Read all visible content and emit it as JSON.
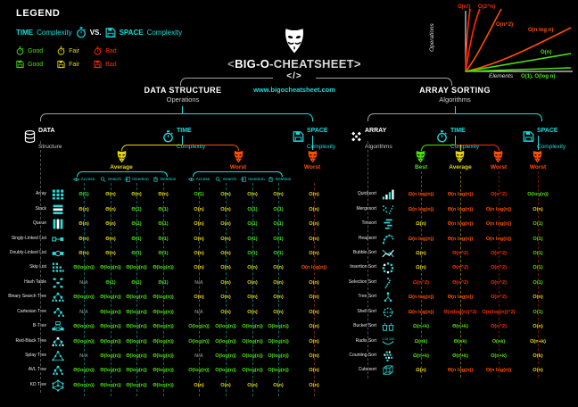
{
  "colors": {
    "cyan": "#1ADCDC",
    "green": "#4CE00A",
    "yellow": "#E6D60A",
    "orange": "#FF4F00",
    "red": "#FF2B00",
    "na_gray": "#7a7a7a",
    "line_gray": "#9aa5a5"
  },
  "legend": {
    "title": "LEGEND",
    "time_label": "TIME",
    "time_word": "Complexity",
    "vs": "VS.",
    "space_label": "SPACE",
    "space_word": "Complexity",
    "ratings": [
      "Good",
      "Fair",
      "Bad"
    ]
  },
  "title_block": {
    "mask_icon": "guy-fawkes-mask",
    "title_pre": "<",
    "title_main": "BIG-O",
    "title_rest": "-CHEATSHEET>",
    "code_tag": "</>",
    "url": "www.bigocheatsheet.com"
  },
  "complexity_chart": {
    "type": "line",
    "ylabel": "Operations",
    "xlabel": "Elements",
    "curves": [
      {
        "label": "O(n!)",
        "color": "#FF2B00",
        "shape": "near-vertical"
      },
      {
        "label": "O(2^n)",
        "color": "#FF2B00",
        "shape": "exponential"
      },
      {
        "label": "O(n^2)",
        "color": "#FF4F00",
        "shape": "quadratic"
      },
      {
        "label": "O(n log n)",
        "color": "#FF4F00",
        "shape": "linearithmic"
      },
      {
        "label": "O(n)",
        "color": "#4CE00A",
        "shape": "linear"
      },
      {
        "label": "O(1), O(log n)",
        "color": "#4CE00A",
        "shape": "flat"
      }
    ]
  },
  "left_section": {
    "header": "DATA STRUCTURE",
    "subheader": "Operations",
    "root_label": "DATA",
    "root_sublabel": "Structure",
    "time": {
      "label": "TIME",
      "sublabel": "Complexity",
      "groups": [
        {
          "label": "Average",
          "color": "yellow"
        },
        {
          "label": "Worst",
          "color": "orange"
        }
      ]
    },
    "space": {
      "label": "SPACE",
      "sublabel": "Complexity",
      "group": "Worst"
    },
    "op_headers": [
      "Access",
      "Search",
      "Insertion",
      "Deletion"
    ],
    "rows": [
      {
        "name": "Array",
        "icon": "array-icon",
        "cells": [
          [
            "Θ(1)",
            "green"
          ],
          [
            "Θ(n)",
            "yellow"
          ],
          [
            "Θ(n)",
            "yellow"
          ],
          [
            "Θ(n)",
            "yellow"
          ],
          [
            "O(1)",
            "green"
          ],
          [
            "O(n)",
            "yellow"
          ],
          [
            "O(n)",
            "yellow"
          ],
          [
            "O(n)",
            "yellow"
          ],
          [
            "O(n)",
            "yellow"
          ]
        ]
      },
      {
        "name": "Stack",
        "icon": "stack-icon",
        "cells": [
          [
            "Θ(n)",
            "yellow"
          ],
          [
            "Θ(n)",
            "yellow"
          ],
          [
            "Θ(1)",
            "green"
          ],
          [
            "Θ(1)",
            "green"
          ],
          [
            "O(n)",
            "yellow"
          ],
          [
            "O(n)",
            "yellow"
          ],
          [
            "O(1)",
            "green"
          ],
          [
            "O(1)",
            "green"
          ],
          [
            "O(n)",
            "yellow"
          ]
        ]
      },
      {
        "name": "Queue",
        "icon": "queue-icon",
        "cells": [
          [
            "Θ(n)",
            "yellow"
          ],
          [
            "Θ(n)",
            "yellow"
          ],
          [
            "Θ(1)",
            "green"
          ],
          [
            "Θ(1)",
            "green"
          ],
          [
            "O(n)",
            "yellow"
          ],
          [
            "O(n)",
            "yellow"
          ],
          [
            "O(1)",
            "green"
          ],
          [
            "O(1)",
            "green"
          ],
          [
            "O(n)",
            "yellow"
          ]
        ]
      },
      {
        "name": "Singly-Linked List",
        "icon": "singly-linked-list-icon",
        "cells": [
          [
            "Θ(n)",
            "yellow"
          ],
          [
            "Θ(n)",
            "yellow"
          ],
          [
            "Θ(1)",
            "green"
          ],
          [
            "Θ(1)",
            "green"
          ],
          [
            "O(n)",
            "yellow"
          ],
          [
            "O(n)",
            "yellow"
          ],
          [
            "O(1)",
            "green"
          ],
          [
            "O(1)",
            "green"
          ],
          [
            "O(n)",
            "yellow"
          ]
        ]
      },
      {
        "name": "Doubly-Linked List",
        "icon": "doubly-linked-list-icon",
        "cells": [
          [
            "Θ(n)",
            "yellow"
          ],
          [
            "Θ(n)",
            "yellow"
          ],
          [
            "Θ(1)",
            "green"
          ],
          [
            "Θ(1)",
            "green"
          ],
          [
            "O(n)",
            "yellow"
          ],
          [
            "O(n)",
            "yellow"
          ],
          [
            "O(1)",
            "green"
          ],
          [
            "O(1)",
            "green"
          ],
          [
            "O(n)",
            "yellow"
          ]
        ]
      },
      {
        "name": "Skip List",
        "icon": "skip-list-icon",
        "cells": [
          [
            "Θ(log(n))",
            "green"
          ],
          [
            "Θ(log(n))",
            "green"
          ],
          [
            "Θ(log(n))",
            "green"
          ],
          [
            "Θ(log(n))",
            "green"
          ],
          [
            "O(n)",
            "yellow"
          ],
          [
            "O(n)",
            "yellow"
          ],
          [
            "O(n)",
            "yellow"
          ],
          [
            "O(n)",
            "yellow"
          ],
          [
            "O(n log(n))",
            "orange"
          ]
        ]
      },
      {
        "name": "Hash Table",
        "icon": "hash-table-icon",
        "cells": [
          [
            "N/A",
            "gray"
          ],
          [
            "Θ(1)",
            "green"
          ],
          [
            "Θ(1)",
            "green"
          ],
          [
            "Θ(1)",
            "green"
          ],
          [
            "N/A",
            "gray"
          ],
          [
            "O(n)",
            "yellow"
          ],
          [
            "O(n)",
            "yellow"
          ],
          [
            "O(n)",
            "yellow"
          ],
          [
            "O(n)",
            "yellow"
          ]
        ]
      },
      {
        "name": "Binary Search Tree",
        "icon": "binary-search-tree-icon",
        "cells": [
          [
            "Θ(log(n))",
            "green"
          ],
          [
            "Θ(log(n))",
            "green"
          ],
          [
            "Θ(log(n))",
            "green"
          ],
          [
            "Θ(log(n))",
            "green"
          ],
          [
            "O(n)",
            "yellow"
          ],
          [
            "O(n)",
            "yellow"
          ],
          [
            "O(n)",
            "yellow"
          ],
          [
            "O(n)",
            "yellow"
          ],
          [
            "O(n)",
            "yellow"
          ]
        ]
      },
      {
        "name": "Cartesian Tree",
        "icon": "cartesian-tree-icon",
        "cells": [
          [
            "N/A",
            "gray"
          ],
          [
            "Θ(log(n))",
            "green"
          ],
          [
            "Θ(log(n))",
            "green"
          ],
          [
            "Θ(log(n))",
            "green"
          ],
          [
            "N/A",
            "gray"
          ],
          [
            "O(n)",
            "yellow"
          ],
          [
            "O(n)",
            "yellow"
          ],
          [
            "O(n)",
            "yellow"
          ],
          [
            "O(n)",
            "yellow"
          ]
        ]
      },
      {
        "name": "B-Tree",
        "icon": "b-tree-icon",
        "cells": [
          [
            "Θ(log(n))",
            "green"
          ],
          [
            "Θ(log(n))",
            "green"
          ],
          [
            "Θ(log(n))",
            "green"
          ],
          [
            "Θ(log(n))",
            "green"
          ],
          [
            "O(log(n))",
            "green"
          ],
          [
            "O(log(n))",
            "green"
          ],
          [
            "O(log(n))",
            "green"
          ],
          [
            "O(log(n))",
            "green"
          ],
          [
            "O(n)",
            "yellow"
          ]
        ]
      },
      {
        "name": "Red-Black Tree",
        "icon": "red-black-tree-icon",
        "cells": [
          [
            "Θ(log(n))",
            "green"
          ],
          [
            "Θ(log(n))",
            "green"
          ],
          [
            "Θ(log(n))",
            "green"
          ],
          [
            "Θ(log(n))",
            "green"
          ],
          [
            "O(log(n))",
            "green"
          ],
          [
            "O(log(n))",
            "green"
          ],
          [
            "O(log(n))",
            "green"
          ],
          [
            "O(log(n))",
            "green"
          ],
          [
            "O(n)",
            "yellow"
          ]
        ]
      },
      {
        "name": "Splay Tree",
        "icon": "splay-tree-icon",
        "cells": [
          [
            "N/A",
            "gray"
          ],
          [
            "Θ(log(n))",
            "green"
          ],
          [
            "Θ(log(n))",
            "green"
          ],
          [
            "Θ(log(n))",
            "green"
          ],
          [
            "N/A",
            "gray"
          ],
          [
            "O(log(n))",
            "green"
          ],
          [
            "O(log(n))",
            "green"
          ],
          [
            "O(log(n))",
            "green"
          ],
          [
            "O(n)",
            "yellow"
          ]
        ]
      },
      {
        "name": "AVL Tree",
        "icon": "avl-tree-icon",
        "cells": [
          [
            "Θ(log(n))",
            "green"
          ],
          [
            "Θ(log(n))",
            "green"
          ],
          [
            "Θ(log(n))",
            "green"
          ],
          [
            "Θ(log(n))",
            "green"
          ],
          [
            "O(log(n))",
            "green"
          ],
          [
            "O(log(n))",
            "green"
          ],
          [
            "O(log(n))",
            "green"
          ],
          [
            "O(log(n))",
            "green"
          ],
          [
            "O(n)",
            "yellow"
          ]
        ]
      },
      {
        "name": "KD Tree",
        "icon": "kd-tree-icon",
        "cells": [
          [
            "Θ(log(n))",
            "green"
          ],
          [
            "Θ(log(n))",
            "green"
          ],
          [
            "Θ(log(n))",
            "green"
          ],
          [
            "Θ(log(n))",
            "green"
          ],
          [
            "O(n)",
            "yellow"
          ],
          [
            "O(n)",
            "yellow"
          ],
          [
            "O(n)",
            "yellow"
          ],
          [
            "O(n)",
            "yellow"
          ],
          [
            "O(n)",
            "yellow"
          ]
        ]
      }
    ]
  },
  "right_section": {
    "header": "ARRAY SORTING",
    "subheader": "Algorithms",
    "root_label": "ARRAY",
    "root_sublabel": "Algorithms",
    "time": {
      "label": "TIME",
      "sublabel": "Complexity"
    },
    "space": {
      "label": "SPACE",
      "sublabel": "Complexity"
    },
    "time_groups": [
      "Best",
      "Average",
      "Worst"
    ],
    "space_group": "Worst",
    "rows": [
      {
        "name": "Quicksort",
        "icon": "quicksort-icon",
        "cells": [
          [
            "Ω(n log(n))",
            "orange"
          ],
          [
            "Θ(n log(n))",
            "orange"
          ],
          [
            "O(n^2)",
            "red"
          ],
          [
            "O(log(n))",
            "green"
          ]
        ]
      },
      {
        "name": "Mergesort",
        "icon": "mergesort-icon",
        "cells": [
          [
            "Ω(n log(n))",
            "orange"
          ],
          [
            "Θ(n log(n))",
            "orange"
          ],
          [
            "O(n log(n))",
            "orange"
          ],
          [
            "O(n)",
            "yellow"
          ]
        ]
      },
      {
        "name": "Timsort",
        "icon": "timsort-icon",
        "cells": [
          [
            "Ω(n)",
            "yellow"
          ],
          [
            "Θ(n log(n))",
            "orange"
          ],
          [
            "O(n log(n))",
            "orange"
          ],
          [
            "O(1)",
            "green"
          ]
        ]
      },
      {
        "name": "Heapsort",
        "icon": "heapsort-icon",
        "cells": [
          [
            "Ω(n log(n))",
            "orange"
          ],
          [
            "Θ(n log(n))",
            "orange"
          ],
          [
            "O(n log(n))",
            "orange"
          ],
          [
            "O(1)",
            "green"
          ]
        ]
      },
      {
        "name": "Bubble Sort",
        "icon": "bubble-sort-icon",
        "cells": [
          [
            "Ω(n)",
            "yellow"
          ],
          [
            "Θ(n^2)",
            "red"
          ],
          [
            "O(n^2)",
            "red"
          ],
          [
            "O(1)",
            "green"
          ]
        ]
      },
      {
        "name": "Insertion Sort",
        "icon": "insertion-sort-icon",
        "cells": [
          [
            "Ω(n)",
            "yellow"
          ],
          [
            "Θ(n^2)",
            "red"
          ],
          [
            "O(n^2)",
            "red"
          ],
          [
            "O(1)",
            "green"
          ]
        ]
      },
      {
        "name": "Selection Sort",
        "icon": "selection-sort-icon",
        "cells": [
          [
            "Ω(n^2)",
            "red"
          ],
          [
            "Θ(n^2)",
            "red"
          ],
          [
            "O(n^2)",
            "red"
          ],
          [
            "O(1)",
            "green"
          ]
        ]
      },
      {
        "name": "Tree Sort",
        "icon": "tree-sort-icon",
        "cells": [
          [
            "Ω(n log(n))",
            "orange"
          ],
          [
            "Θ(n log(n))",
            "orange"
          ],
          [
            "O(n^2)",
            "red"
          ],
          [
            "O(n)",
            "yellow"
          ]
        ]
      },
      {
        "name": "Shell Sort",
        "icon": "shell-sort-icon",
        "cells": [
          [
            "Ω(n log(n))",
            "orange"
          ],
          [
            "Θ(n(log(n))^2)",
            "red"
          ],
          [
            "O(n(log(n))^2)",
            "red"
          ],
          [
            "O(1)",
            "green"
          ]
        ]
      },
      {
        "name": "Bucket Sort",
        "icon": "bucket-sort-icon",
        "cells": [
          [
            "Ω(n+k)",
            "green"
          ],
          [
            "Θ(n+k)",
            "green"
          ],
          [
            "O(n^2)",
            "red"
          ],
          [
            "O(n)",
            "yellow"
          ]
        ]
      },
      {
        "name": "Radix Sort",
        "icon": "radix-sort-icon",
        "cells": [
          [
            "Ω(nk)",
            "green"
          ],
          [
            "Θ(nk)",
            "green"
          ],
          [
            "O(nk)",
            "green"
          ],
          [
            "O(n+k)",
            "yellow"
          ]
        ]
      },
      {
        "name": "Counting Sort",
        "icon": "counting-sort-icon",
        "cells": [
          [
            "Ω(n+k)",
            "green"
          ],
          [
            "Θ(n+k)",
            "green"
          ],
          [
            "O(n+k)",
            "green"
          ],
          [
            "O(k)",
            "yellow"
          ]
        ]
      },
      {
        "name": "Cubesort",
        "icon": "cubesort-icon",
        "cells": [
          [
            "Ω(n)",
            "yellow"
          ],
          [
            "Θ(n log(n))",
            "orange"
          ],
          [
            "O(n log(n))",
            "orange"
          ],
          [
            "O(n)",
            "yellow"
          ]
        ]
      }
    ]
  }
}
